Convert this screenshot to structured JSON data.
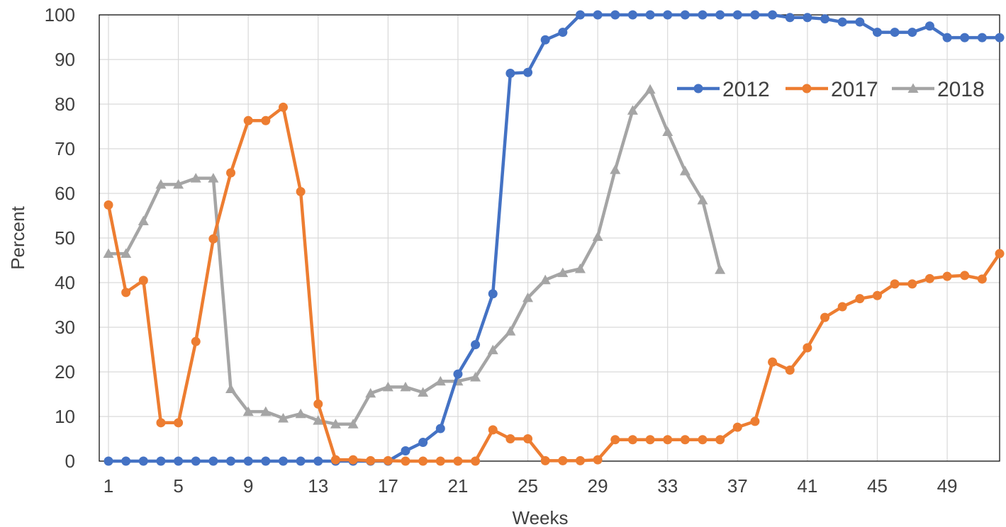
{
  "chart_data": {
    "type": "line",
    "title": "",
    "xlabel": "Weeks",
    "ylabel": "Percent",
    "xlim": [
      1,
      52
    ],
    "ylim": [
      0,
      100
    ],
    "x_tick_labels": [
      "1",
      "5",
      "9",
      "13",
      "17",
      "21",
      "25",
      "29",
      "33",
      "37",
      "41",
      "45",
      "49"
    ],
    "y_tick_labels": [
      "0",
      "10",
      "20",
      "30",
      "40",
      "50",
      "60",
      "70",
      "80",
      "90",
      "100"
    ],
    "grid": true,
    "legend_position": "top-right",
    "series": [
      {
        "name": "2012",
        "color": "#4472C4",
        "marker": "circle",
        "x": [
          1,
          2,
          3,
          4,
          5,
          6,
          7,
          8,
          9,
          10,
          11,
          12,
          13,
          14,
          15,
          16,
          17,
          18,
          19,
          20,
          21,
          22,
          23,
          24,
          25,
          26,
          27,
          28,
          29,
          30,
          31,
          32,
          33,
          34,
          35,
          36,
          37,
          38,
          39,
          40,
          41,
          42,
          43,
          44,
          45,
          46,
          47,
          48,
          49,
          50,
          51,
          52
        ],
        "values": [
          0,
          0,
          0,
          0,
          0,
          0,
          0,
          0,
          0,
          0,
          0,
          0,
          0,
          0,
          0,
          0,
          0,
          2.3,
          4.2,
          7.3,
          19.5,
          26.1,
          37.5,
          86.9,
          87.1,
          94.4,
          96.1,
          100,
          100,
          100,
          100,
          100,
          100,
          100,
          100,
          100,
          100,
          100,
          100,
          99.4,
          99.4,
          99.1,
          98.4,
          98.4,
          96.1,
          96.1,
          96.1,
          97.5,
          94.9,
          94.9,
          94.9,
          94.9
        ]
      },
      {
        "name": "2017",
        "color": "#ED7D31",
        "marker": "circle",
        "x": [
          1,
          2,
          3,
          4,
          5,
          6,
          7,
          8,
          9,
          10,
          11,
          12,
          13,
          14,
          15,
          16,
          17,
          18,
          19,
          20,
          21,
          22,
          23,
          24,
          25,
          26,
          27,
          28,
          29,
          30,
          31,
          32,
          33,
          34,
          35,
          36,
          37,
          38,
          39,
          40,
          41,
          42,
          43,
          44,
          45,
          46,
          47,
          48,
          49,
          50,
          51,
          52
        ],
        "values": [
          57.4,
          37.8,
          40.5,
          8.6,
          8.6,
          26.8,
          49.8,
          64.6,
          76.3,
          76.3,
          79.3,
          60.4,
          12.8,
          0.3,
          0.3,
          0.1,
          0.1,
          0,
          0,
          0,
          0,
          0,
          7,
          5,
          5,
          0.1,
          0.1,
          0.1,
          0.3,
          4.8,
          4.8,
          4.8,
          4.8,
          4.8,
          4.8,
          4.8,
          7.6,
          8.9,
          22.2,
          20.4,
          25.4,
          32.2,
          34.6,
          36.4,
          37.1,
          39.7,
          39.7,
          40.9,
          41.4,
          41.6,
          40.8,
          46.5
        ]
      },
      {
        "name": "2018",
        "color": "#A5A5A5",
        "marker": "triangle",
        "x": [
          1,
          2,
          3,
          4,
          5,
          6,
          7,
          8,
          9,
          10,
          11,
          12,
          13,
          14,
          15,
          16,
          17,
          18,
          19,
          20,
          21,
          22,
          23,
          24,
          25,
          26,
          27,
          28,
          29,
          30,
          31,
          32,
          33,
          34,
          35,
          36
        ],
        "values": [
          46.5,
          46.5,
          53.8,
          62,
          62,
          63.4,
          63.4,
          16.2,
          11.1,
          11.1,
          9.6,
          10.6,
          9.1,
          8.3,
          8.3,
          15.2,
          16.6,
          16.6,
          15.4,
          17.9,
          17.9,
          18.8,
          24.9,
          29.1,
          36.6,
          40.6,
          42.2,
          43.1,
          50.3,
          65.3,
          78.6,
          83.3,
          73.8,
          65,
          58.5,
          42.9
        ]
      }
    ]
  }
}
